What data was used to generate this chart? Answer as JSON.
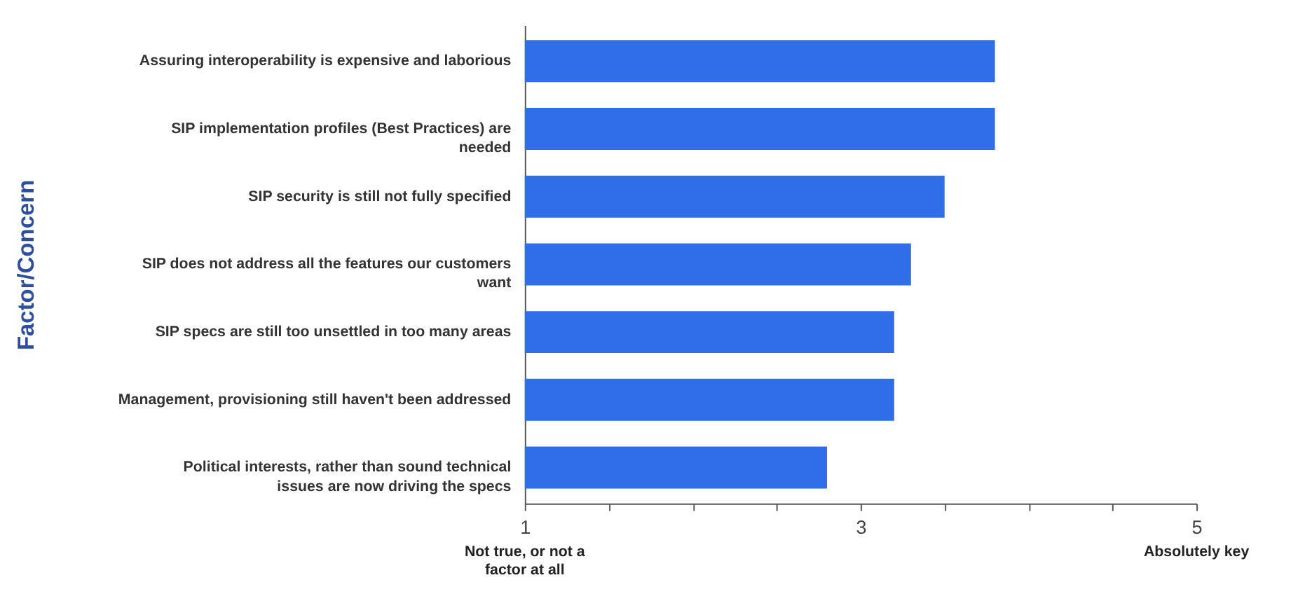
{
  "chart_data": {
    "type": "bar",
    "orientation": "horizontal",
    "ylabel": "Factor/Concern",
    "categories": [
      "Assuring interoperability is expensive and laborious",
      "SIP implementation profiles (Best Practices) are needed",
      "SIP security is still not fully specified",
      "SIP does not address all the features our customers want",
      "SIP specs are still too unsettled in too many areas",
      "Management, provisioning still haven't been addressed",
      "Political interests, rather than sound technical issues are now driving the specs"
    ],
    "values": [
      3.8,
      3.8,
      3.5,
      3.3,
      3.2,
      3.2,
      2.8
    ],
    "color": "#2f6ee8",
    "xlim": [
      1,
      5
    ],
    "xticks": [
      1,
      {
        "value": 1.5,
        "label": null
      },
      {
        "value": 2,
        "label": null
      },
      {
        "value": 2.5,
        "label": null
      },
      3,
      {
        "value": 3.5,
        "label": null
      },
      {
        "value": 4,
        "label": null
      },
      {
        "value": 4.5,
        "label": null
      },
      5
    ],
    "annotations": [
      "Not true, or not a factor at all",
      "Absolutely key"
    ],
    "grid": false
  }
}
